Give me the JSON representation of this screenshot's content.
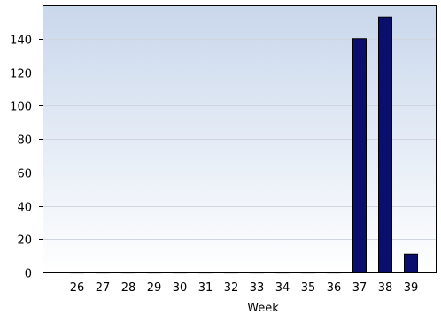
{
  "chart_data": {
    "type": "bar",
    "title": "",
    "xlabel": "Week",
    "ylabel": "",
    "categories": [
      "26",
      "27",
      "28",
      "29",
      "30",
      "31",
      "32",
      "33",
      "34",
      "35",
      "36",
      "37",
      "38",
      "39"
    ],
    "values": [
      0,
      0,
      0,
      0,
      0,
      0,
      0,
      0,
      0,
      0,
      0,
      140,
      153,
      11
    ],
    "ylim": [
      0,
      160
    ],
    "yticks": [
      0,
      20,
      40,
      60,
      80,
      100,
      120,
      140
    ],
    "grid": "horizontal",
    "legend": "none",
    "colors": {
      "bar_fill": "#0a0f6e",
      "bar_stroke": "#000000",
      "background_top": "#c9d7ec",
      "background_bottom": "#ffffff",
      "grid": "#d0d6e0"
    }
  }
}
